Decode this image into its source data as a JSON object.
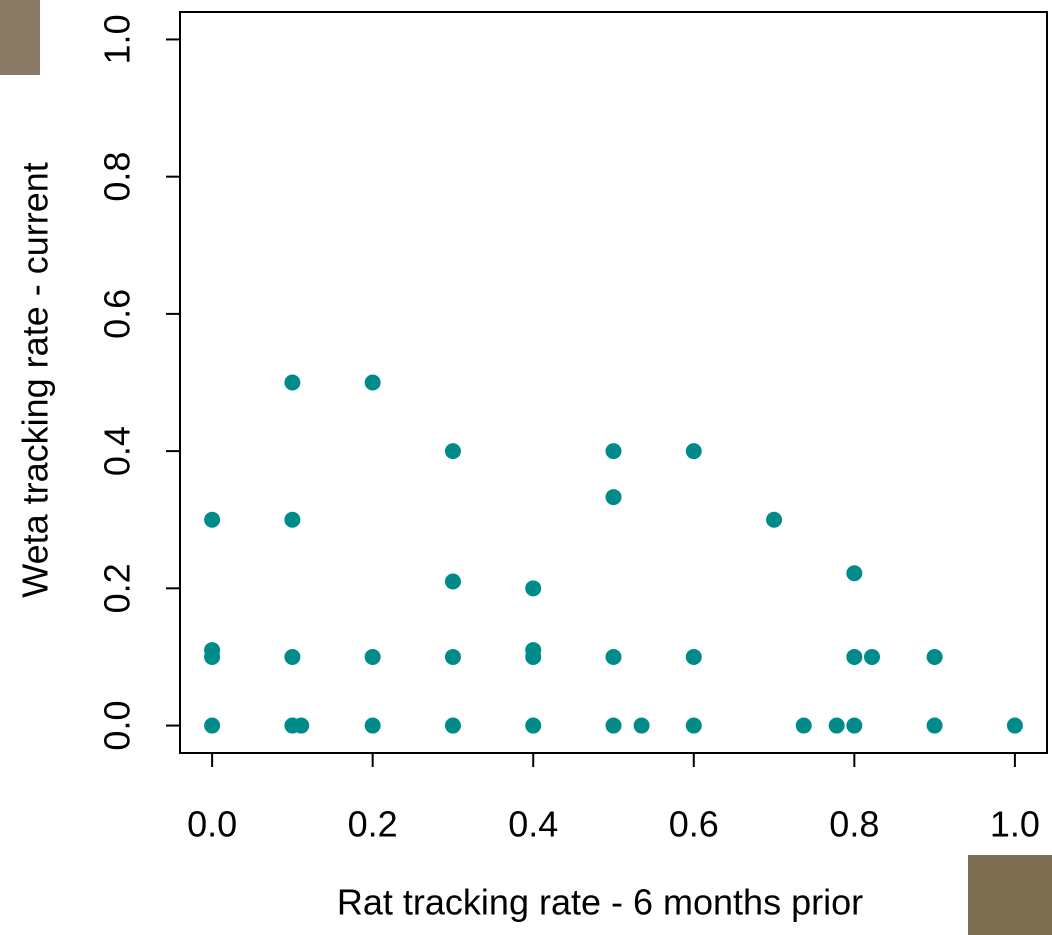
{
  "chart_data": {
    "type": "scatter",
    "x_label": "Rat tracking rate - 6 months prior",
    "y_label": "Weta tracking rate - current",
    "color": "#008b8b",
    "x": [
      0,
      0,
      0,
      0,
      0.1,
      0.1,
      0.1,
      0.1,
      0.111,
      0.2,
      0.2,
      0.2,
      0.3,
      0.3,
      0.3,
      0.3,
      0.4,
      0.4,
      0.4,
      0.4,
      0.5,
      0.5,
      0.5,
      0.5,
      0.535,
      0.6,
      0.6,
      0.6,
      0.7,
      0.737,
      0.778,
      0.8,
      0.8,
      0.8,
      0.822,
      0.9,
      0.9,
      1.0
    ],
    "y": [
      0.3,
      0.11,
      0.1,
      0,
      0.5,
      0.3,
      0.1,
      0,
      0,
      0.5,
      0.1,
      0,
      0.4,
      0.21,
      0.1,
      0,
      0.2,
      0.11,
      0.1,
      0,
      0.4,
      0.333,
      0.1,
      0,
      0,
      0.4,
      0.1,
      0,
      0.3,
      0,
      0,
      0.222,
      0.1,
      0,
      0.1,
      0.1,
      0,
      0
    ],
    "xlim": [
      -0.04,
      1.04
    ],
    "ylim": [
      -0.04,
      1.04
    ],
    "xticks": [
      {
        "value": 0,
        "label": "0.0"
      },
      0.2,
      0.4,
      0.6,
      0.8,
      {
        "value": 1,
        "label": "1.0"
      }
    ],
    "yticks": [
      {
        "value": 0,
        "label": "0.0"
      },
      0.2,
      0.4,
      0.6,
      0.8,
      {
        "value": 1,
        "label": "1.0"
      }
    ]
  }
}
